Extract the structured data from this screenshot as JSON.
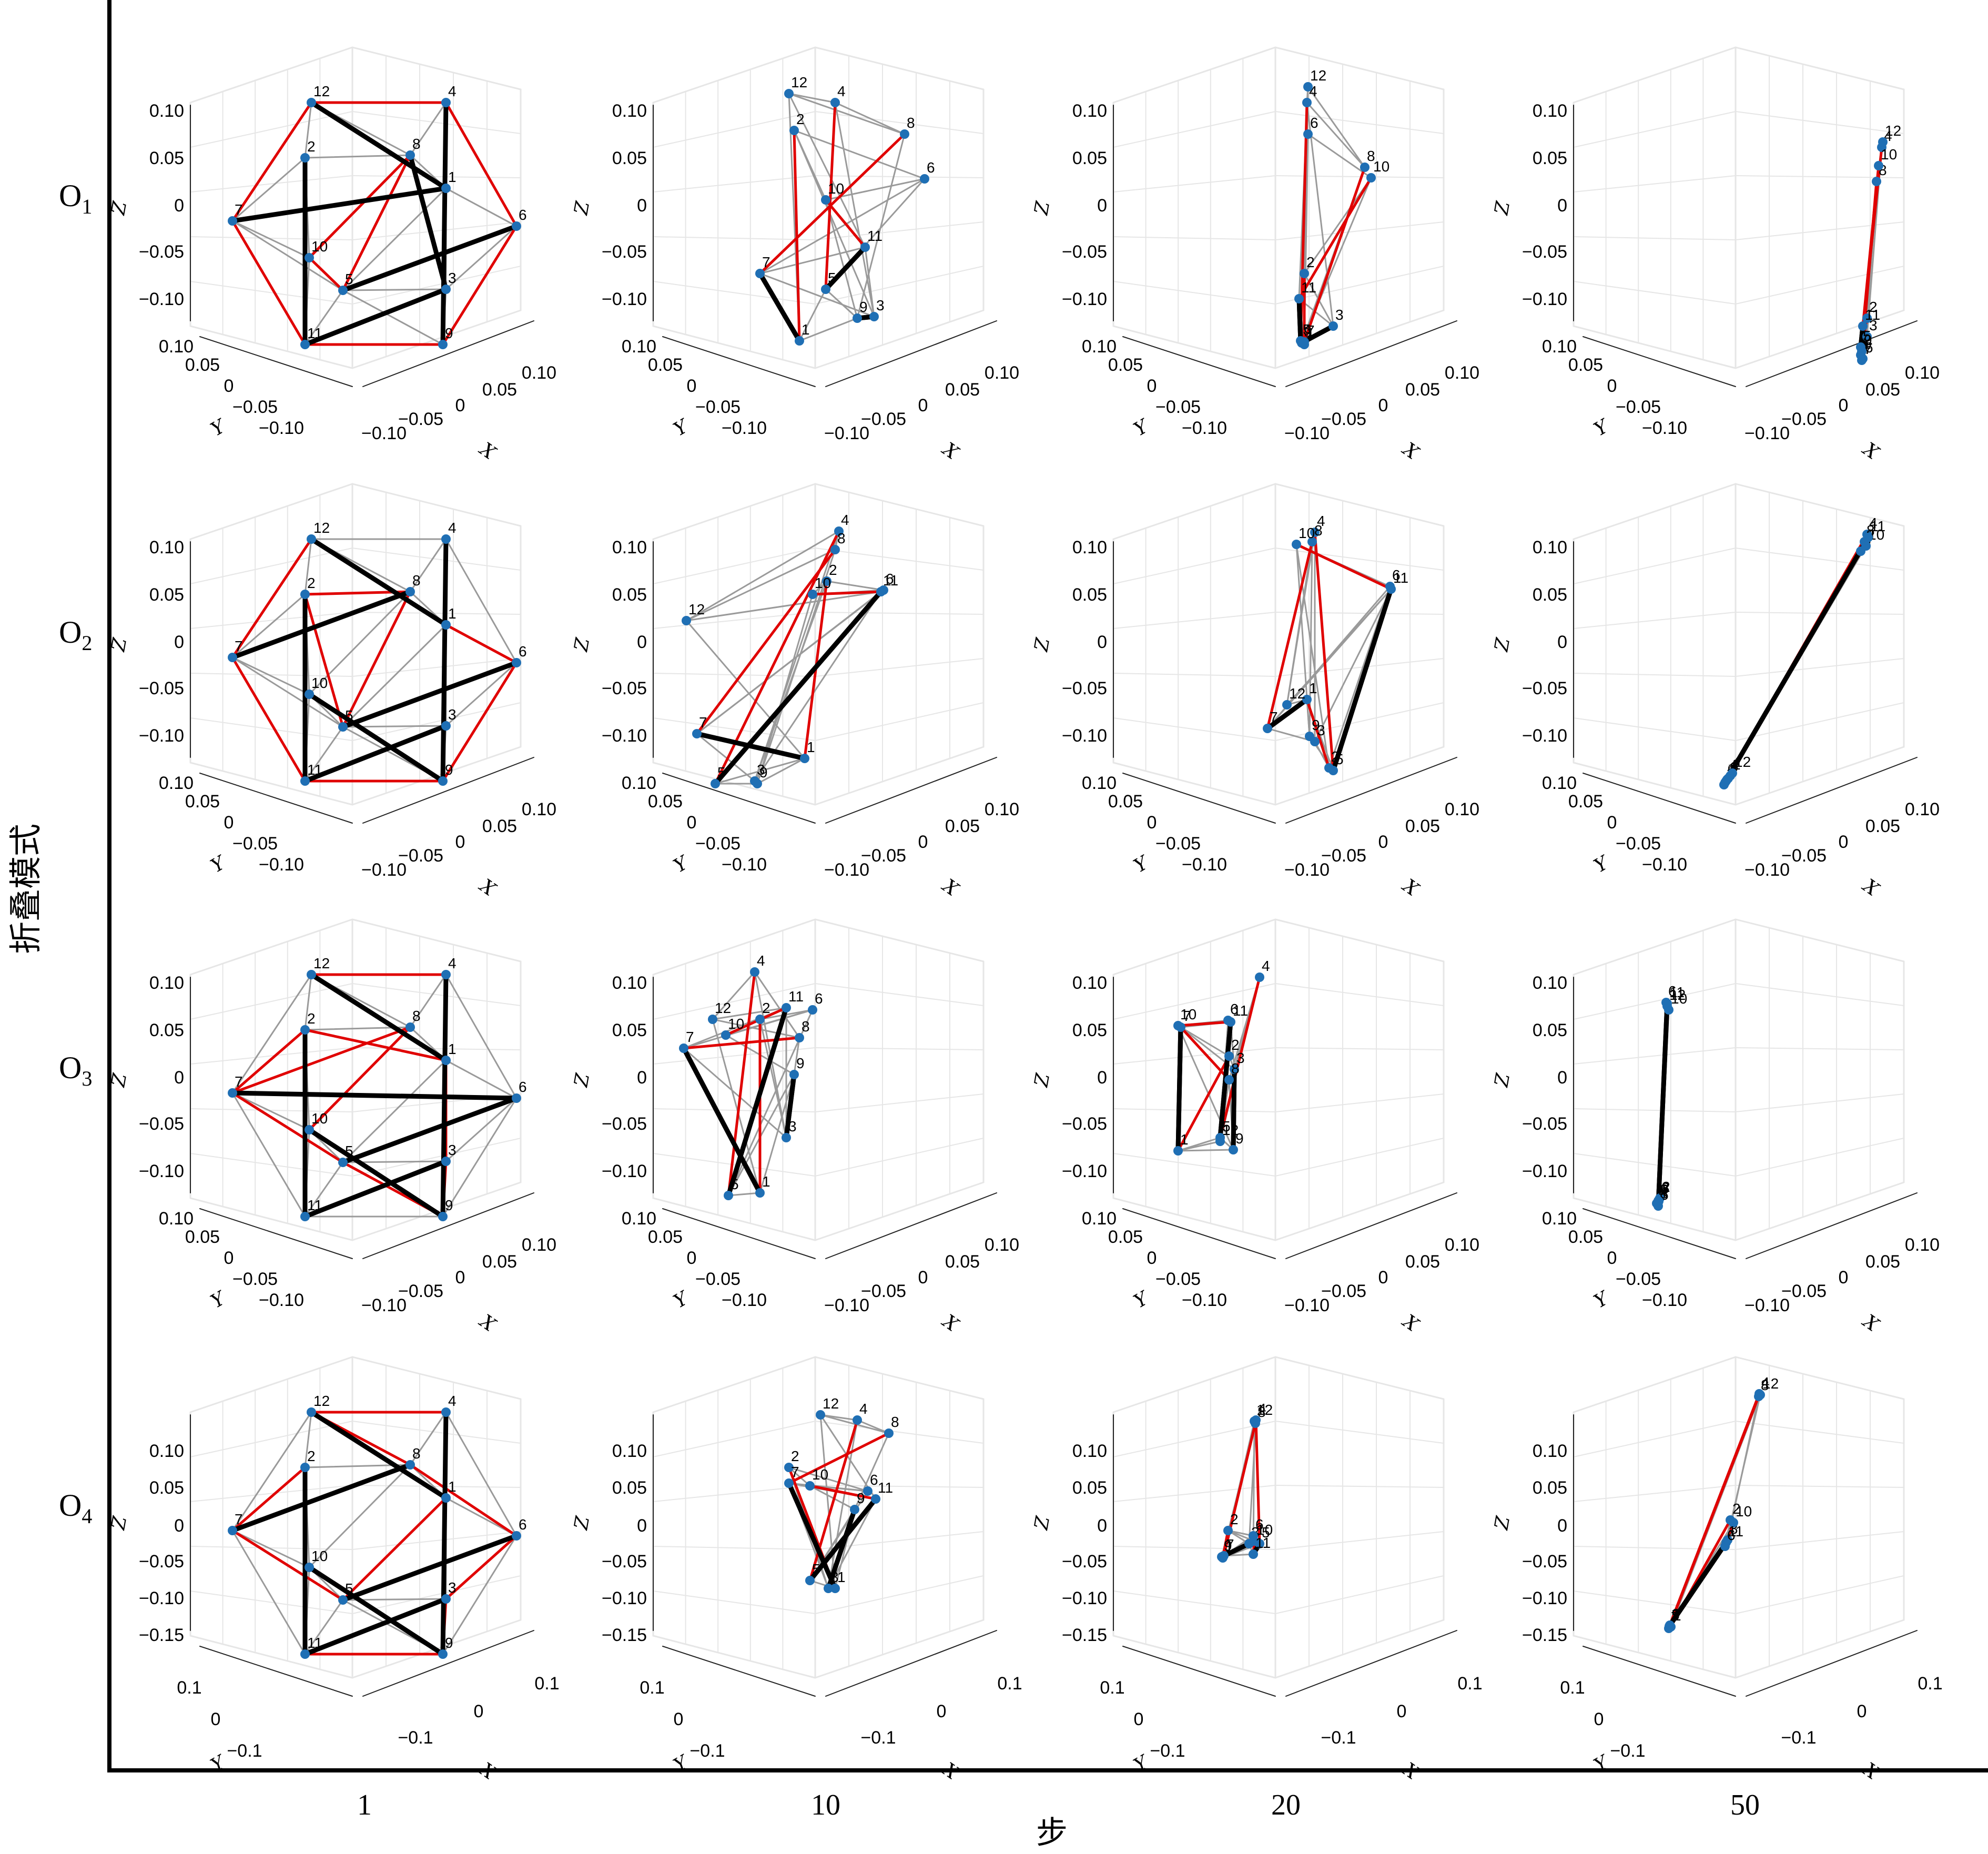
{
  "figure": {
    "x_label": "步",
    "y_label": "折叠模式",
    "columns": [
      "1",
      "10",
      "20",
      "50"
    ],
    "rows": [
      {
        "name": "O",
        "sub": "1"
      },
      {
        "name": "O",
        "sub": "2"
      },
      {
        "name": "O",
        "sub": "3"
      },
      {
        "name": "O",
        "sub": "4"
      }
    ],
    "axis_names": {
      "x": "X",
      "y": "Y",
      "z": "Z"
    },
    "ticks_rows_1_3": {
      "z": [
        "0.10",
        "0.05",
        "0",
        "−0.05",
        "−0.10"
      ],
      "y": [
        "0.10",
        "0.05",
        "0",
        "−0.05",
        "−0.10"
      ],
      "x": [
        "−0.10",
        "−0.05",
        "0",
        "0.05",
        "0.10"
      ]
    },
    "ticks_row_4": {
      "z": [
        "0.10",
        "0.05",
        "0",
        "−0.05",
        "−0.10",
        "−0.15"
      ],
      "y": [
        "0.1",
        "0",
        "−0.1"
      ],
      "x": [
        "−0.1",
        "0",
        "0.1"
      ]
    },
    "colors": {
      "red_edge": "#e00000",
      "black_edge": "#000000",
      "gray_edge": "#9a9a9a",
      "node": "#1f6fb4",
      "grid": "#e6e6e6"
    }
  }
}
